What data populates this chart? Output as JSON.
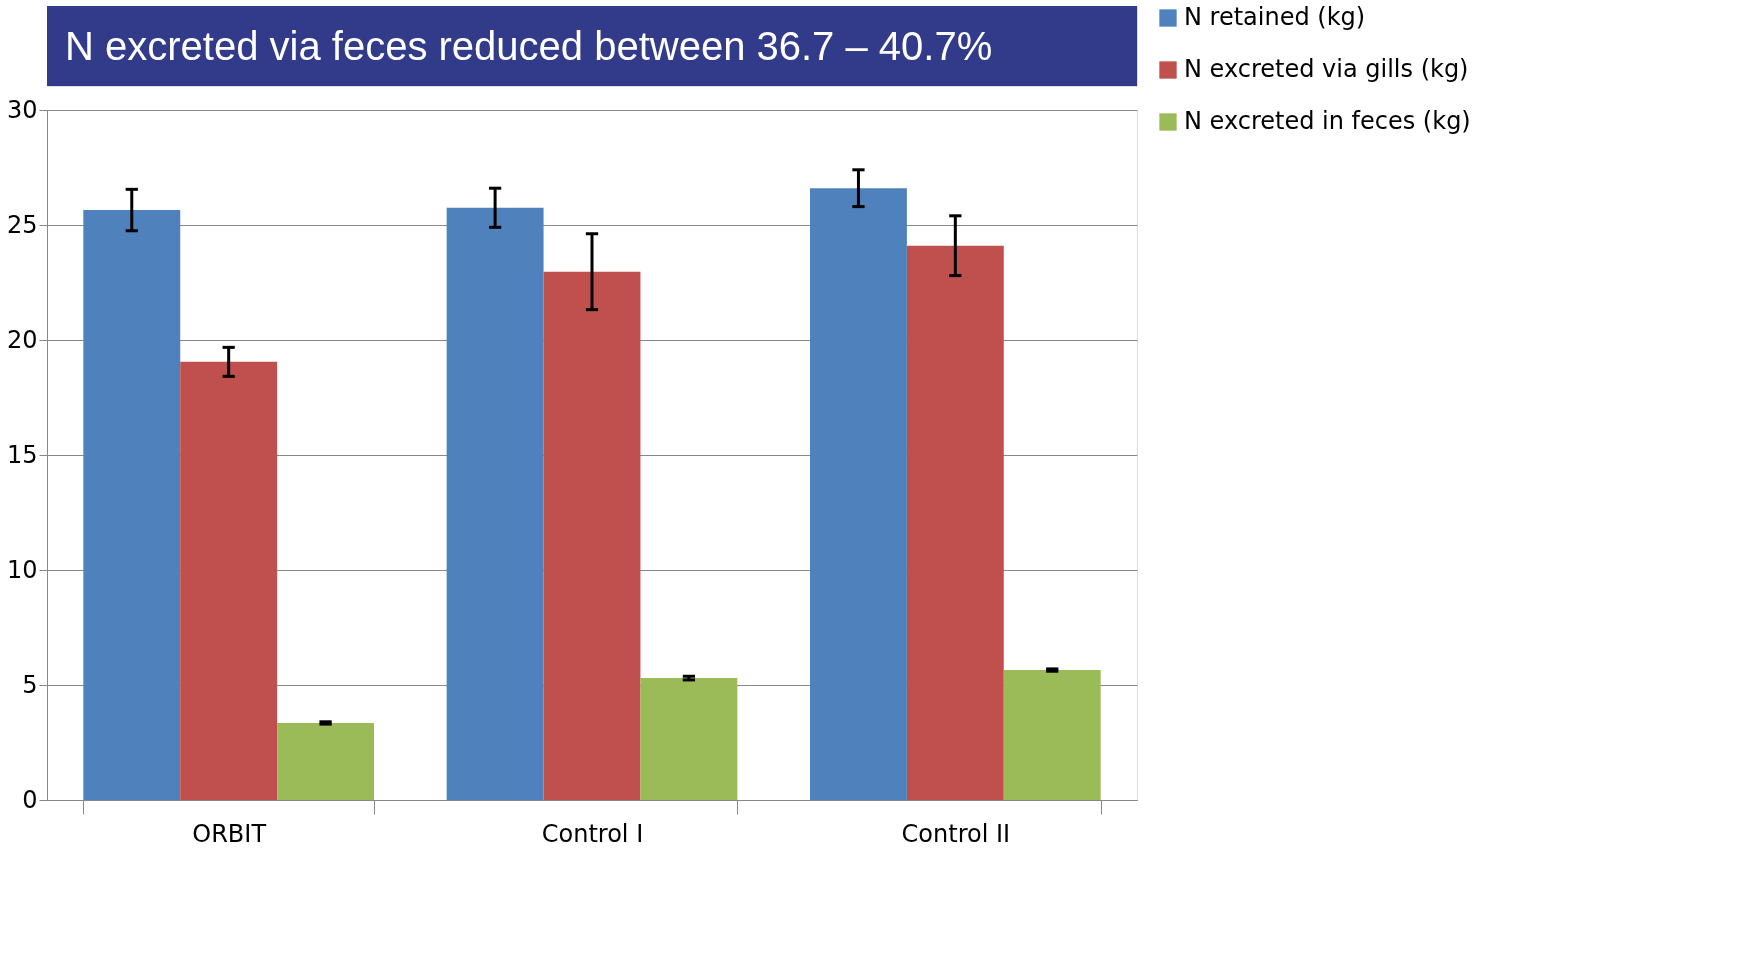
{
  "chart_data": {
    "type": "bar",
    "categories": [
      "ORBIT",
      "Control I",
      "Control II"
    ],
    "series": [
      {
        "name": "N retained (kg)",
        "color": "#4f81bd",
        "values": [
          25.65,
          25.75,
          26.6
        ],
        "errors": [
          0.9,
          0.85,
          0.8
        ]
      },
      {
        "name": "N excreted via gills (kg)",
        "color": "#c0504d",
        "values": [
          19.05,
          22.97,
          24.1
        ],
        "errors": [
          0.63,
          1.65,
          1.3
        ]
      },
      {
        "name": "N excreted in feces (kg)",
        "color": "#9bbb59",
        "values": [
          3.35,
          5.3,
          5.65
        ],
        "errors": [
          0.05,
          0.08,
          0.05
        ]
      }
    ],
    "ylim": [
      0,
      30
    ],
    "yticks": [
      0,
      5,
      10,
      15,
      20,
      25,
      30
    ],
    "grid": "y",
    "legend": "right",
    "annotations": [
      "N excreted via feces reduced between 36.7 – 40.7%"
    ]
  }
}
